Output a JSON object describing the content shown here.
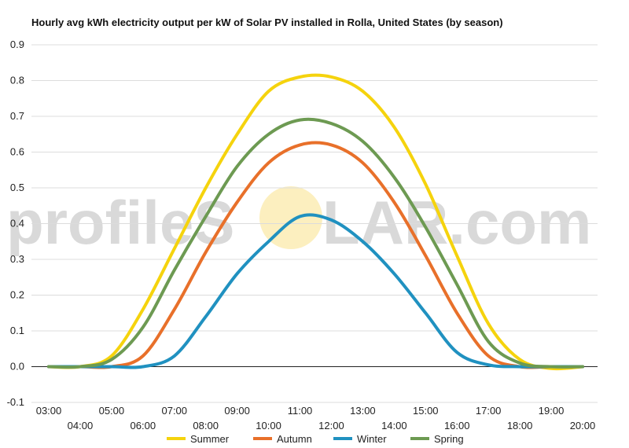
{
  "watermark": {
    "left": "profileS",
    "right": "LAR.com"
  },
  "chart_data": {
    "type": "line",
    "title": "Hourly avg kWh electricity output per kW of Solar PV installed in Rolla, United States (by season)",
    "xlabel": "",
    "ylabel": "",
    "x": [
      "03:00",
      "04:00",
      "05:00",
      "06:00",
      "07:00",
      "08:00",
      "09:00",
      "10:00",
      "11:00",
      "12:00",
      "13:00",
      "14:00",
      "15:00",
      "16:00",
      "17:00",
      "18:00",
      "19:00",
      "20:00"
    ],
    "ylim": [
      -0.1,
      0.9
    ],
    "yticks": [
      "-0.1",
      "0.0",
      "0.1",
      "0.2",
      "0.3",
      "0.4",
      "0.5",
      "0.6",
      "0.7",
      "0.8",
      "0.9"
    ],
    "grid": true,
    "legend_position": "bottom",
    "series": [
      {
        "name": "Summer",
        "color": "#f5d30d",
        "values": [
          0.0,
          0.0,
          0.03,
          0.16,
          0.33,
          0.5,
          0.65,
          0.77,
          0.81,
          0.81,
          0.77,
          0.67,
          0.51,
          0.31,
          0.12,
          0.02,
          -0.005,
          0.0
        ]
      },
      {
        "name": "Autumn",
        "color": "#e8702a",
        "values": [
          0.0,
          0.0,
          0.0,
          0.03,
          0.16,
          0.32,
          0.46,
          0.57,
          0.62,
          0.62,
          0.57,
          0.46,
          0.31,
          0.15,
          0.03,
          0.0,
          0.0,
          0.0
        ]
      },
      {
        "name": "Winter",
        "color": "#2091c0",
        "values": [
          0.0,
          0.0,
          0.0,
          0.0,
          0.03,
          0.14,
          0.26,
          0.35,
          0.42,
          0.41,
          0.35,
          0.26,
          0.15,
          0.04,
          0.005,
          0.0,
          0.0,
          0.0
        ]
      },
      {
        "name": "Spring",
        "color": "#6d9a52",
        "values": [
          0.0,
          0.0,
          0.02,
          0.11,
          0.27,
          0.42,
          0.56,
          0.65,
          0.69,
          0.68,
          0.63,
          0.53,
          0.39,
          0.23,
          0.07,
          0.01,
          0.0,
          0.0
        ]
      }
    ]
  }
}
